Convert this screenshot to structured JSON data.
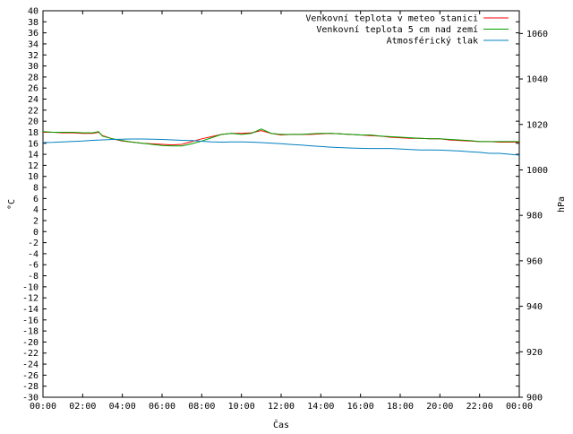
{
  "chart_data": {
    "type": "line",
    "title": "",
    "xlabel": "Čas",
    "ylabel": "°C",
    "y2label": "hPa",
    "x_ticks": [
      "00:00",
      "02:00",
      "04:00",
      "06:00",
      "08:00",
      "10:00",
      "12:00",
      "14:00",
      "16:00",
      "18:00",
      "20:00",
      "22:00",
      "00:00"
    ],
    "ylim": [
      -30,
      40
    ],
    "y2lim": [
      900,
      1070
    ],
    "y_ticks": [
      40,
      38,
      36,
      34,
      32,
      30,
      28,
      26,
      24,
      22,
      20,
      18,
      16,
      14,
      12,
      10,
      8,
      6,
      4,
      2,
      0,
      -2,
      -4,
      -6,
      -8,
      -10,
      -12,
      -14,
      -16,
      -18,
      -20,
      -22,
      -24,
      -26,
      -28,
      -30
    ],
    "y2_ticks": [
      1060,
      1040,
      1020,
      1000,
      980,
      960,
      940,
      920,
      900
    ],
    "legend_position": "top-right",
    "grid": false,
    "series": [
      {
        "name": "Venkovní teplota v meteo stanici",
        "color": "#ff0000",
        "axis": "left",
        "x": [
          0,
          0.5,
          1,
          1.5,
          2,
          2.5,
          2.8,
          3,
          3.5,
          4,
          4.5,
          5,
          5.5,
          6,
          6.5,
          7,
          7.5,
          8,
          8.5,
          9,
          9.5,
          10,
          10.5,
          11,
          11.5,
          12,
          12.5,
          13,
          13.5,
          14,
          14.5,
          15,
          15.5,
          16,
          16.5,
          17,
          17.5,
          18,
          18.5,
          19,
          19.5,
          20,
          20.5,
          21,
          21.5,
          22,
          22.5,
          23,
          23.5,
          24
        ],
        "values": [
          18.0,
          18.0,
          17.9,
          17.9,
          17.8,
          17.8,
          18.0,
          17.4,
          16.8,
          16.4,
          16.2,
          16.0,
          15.9,
          15.8,
          15.7,
          15.8,
          16.3,
          16.8,
          17.2,
          17.6,
          17.8,
          17.8,
          17.9,
          18.3,
          17.8,
          17.5,
          17.6,
          17.6,
          17.6,
          17.7,
          17.8,
          17.7,
          17.6,
          17.5,
          17.4,
          17.3,
          17.1,
          17.0,
          16.9,
          16.9,
          16.8,
          16.8,
          16.6,
          16.5,
          16.4,
          16.3,
          16.3,
          16.2,
          16.2,
          16.2
        ]
      },
      {
        "name": "Venkovní teplota 5 cm nad zemí",
        "color": "#00a000",
        "axis": "left",
        "x": [
          0,
          0.5,
          1,
          1.5,
          2,
          2.5,
          2.8,
          3,
          3.5,
          4,
          4.5,
          5,
          5.5,
          6,
          6.5,
          7,
          7.5,
          8,
          8.5,
          9,
          9.5,
          10,
          10.5,
          11,
          11.5,
          12,
          12.5,
          13,
          13.5,
          14,
          14.5,
          15,
          15.5,
          16,
          16.5,
          17,
          17.5,
          18,
          18.5,
          19,
          19.5,
          20,
          20.5,
          21,
          21.5,
          22,
          22.5,
          23,
          23.5,
          24
        ],
        "values": [
          18.1,
          18.0,
          18.0,
          18.0,
          17.9,
          17.9,
          18.1,
          17.3,
          16.8,
          16.5,
          16.2,
          16.0,
          15.8,
          15.6,
          15.5,
          15.5,
          15.9,
          16.4,
          17.0,
          17.6,
          17.8,
          17.6,
          17.8,
          18.6,
          17.8,
          17.6,
          17.6,
          17.6,
          17.7,
          17.8,
          17.8,
          17.7,
          17.6,
          17.5,
          17.5,
          17.3,
          17.2,
          17.1,
          17.0,
          16.9,
          16.8,
          16.8,
          16.7,
          16.6,
          16.5,
          16.3,
          16.3,
          16.3,
          16.3,
          16.3
        ]
      },
      {
        "name": "Atmosférický tlak",
        "color": "#0080c0",
        "axis": "right",
        "x": [
          0,
          0.5,
          1,
          1.5,
          2,
          2.5,
          3,
          3.5,
          4,
          4.5,
          5,
          5.5,
          6,
          6.5,
          7,
          7.5,
          8,
          8.5,
          9,
          9.5,
          10,
          10.5,
          11,
          11.5,
          12,
          12.5,
          13,
          13.5,
          14,
          14.5,
          15,
          15.5,
          16,
          16.5,
          17,
          17.5,
          18,
          18.5,
          19,
          19.5,
          20,
          20.5,
          21,
          21.5,
          22,
          22.5,
          23,
          23.5,
          24
        ],
        "values": [
          1012.0,
          1012.1,
          1012.3,
          1012.5,
          1012.7,
          1013.0,
          1013.2,
          1013.4,
          1013.5,
          1013.6,
          1013.6,
          1013.5,
          1013.4,
          1013.2,
          1013.0,
          1012.9,
          1012.6,
          1012.3,
          1012.2,
          1012.3,
          1012.3,
          1012.2,
          1012.0,
          1011.8,
          1011.5,
          1011.2,
          1010.9,
          1010.6,
          1010.3,
          1010.0,
          1009.8,
          1009.6,
          1009.5,
          1009.4,
          1009.4,
          1009.4,
          1009.2,
          1009.0,
          1008.8,
          1008.8,
          1008.7,
          1008.5,
          1008.3,
          1008.0,
          1007.7,
          1007.3,
          1007.3,
          1006.9,
          1006.5
        ]
      }
    ]
  }
}
